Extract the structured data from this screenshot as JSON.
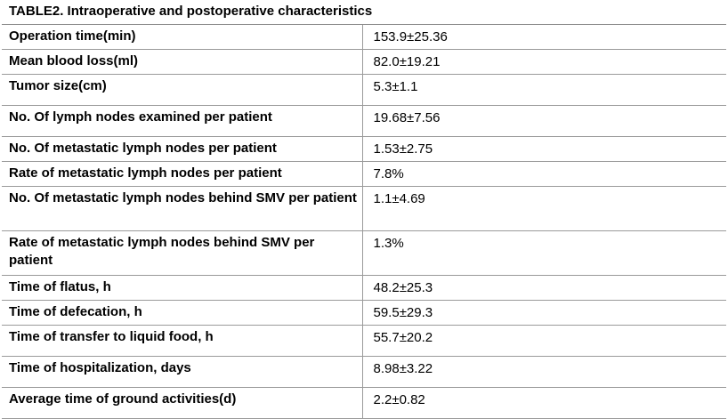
{
  "table": {
    "caption": "TABLE2. Intraoperative and postoperative characteristics",
    "rows": [
      {
        "label": "Operation time(min)",
        "value": "153.9±25.36"
      },
      {
        "label": "Mean blood loss(ml)",
        "value": "82.0±19.21"
      },
      {
        "label": "Tumor size(cm)",
        "value": "5.3±1.1"
      },
      {
        "label": "No. Of lymph nodes examined per patient",
        "value": "19.68±7.56"
      },
      {
        "label": "No. Of metastatic lymph nodes per patient",
        "value": "1.53±2.75"
      },
      {
        "label": "Rate of metastatic lymph nodes per patient",
        "value": "7.8%"
      },
      {
        "label": "No. Of metastatic lymph nodes behind SMV per patient",
        "value": "1.1±4.69"
      },
      {
        "label": "Rate of metastatic lymph nodes behind SMV per patient",
        "value": "1.3%"
      },
      {
        "label": "Time of flatus, h",
        "value": "48.2±25.3"
      },
      {
        "label": "Time of defecation, h",
        "value": "59.5±29.3"
      },
      {
        "label": "Time of transfer to liquid food, h",
        "value": "55.7±20.2"
      },
      {
        "label": "Time of hospitalization, days",
        "value": "8.98±3.22"
      },
      {
        "label": "Average time of ground activities(d)",
        "value": "2.2±0.82"
      }
    ]
  }
}
